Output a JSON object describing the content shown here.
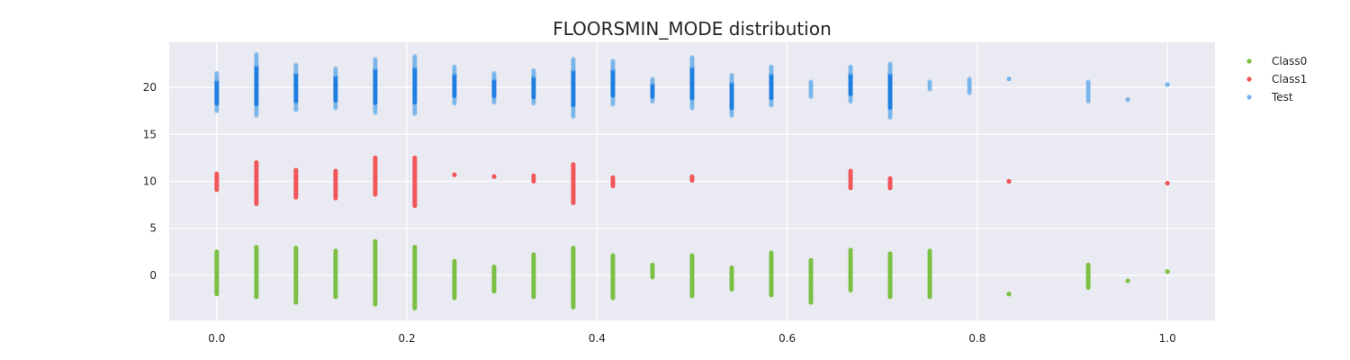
{
  "chart_data": {
    "type": "scatter",
    "title": "FLOORSMIN_MODE distribution",
    "xlabel": "",
    "ylabel": "",
    "xlim": [
      -0.05,
      1.05
    ],
    "ylim": [
      -4.8,
      24.8
    ],
    "xticks": [
      0.0,
      0.2,
      0.4,
      0.6,
      0.8,
      1.0
    ],
    "xtick_labels": [
      "0.0",
      "0.2",
      "0.4",
      "0.6",
      "0.8",
      "1.0"
    ],
    "yticks": [
      0,
      5,
      10,
      15,
      20
    ],
    "ytick_labels": [
      "0",
      "5",
      "10",
      "15",
      "20"
    ],
    "grid": true,
    "legend_position": "upper-right outside",
    "background_color": "#EAEAF2",
    "series": [
      {
        "name": "Class0",
        "color": "#7BC043",
        "offset": 0,
        "columns": [
          {
            "x": 0.0,
            "min": -2.0,
            "max": 2.5
          },
          {
            "x": 0.0417,
            "min": -2.3,
            "max": 3.0
          },
          {
            "x": 0.0833,
            "min": -2.9,
            "max": 2.9
          },
          {
            "x": 0.125,
            "min": -2.3,
            "max": 2.6
          },
          {
            "x": 0.1667,
            "min": -3.1,
            "max": 3.6
          },
          {
            "x": 0.2083,
            "min": -3.5,
            "max": 3.0
          },
          {
            "x": 0.25,
            "min": -2.4,
            "max": 1.5
          },
          {
            "x": 0.2917,
            "min": -1.7,
            "max": 0.9
          },
          {
            "x": 0.3333,
            "min": -2.3,
            "max": 2.2
          },
          {
            "x": 0.375,
            "min": -3.4,
            "max": 2.9
          },
          {
            "x": 0.4167,
            "min": -2.4,
            "max": 2.1
          },
          {
            "x": 0.4583,
            "min": -0.2,
            "max": 1.1
          },
          {
            "x": 0.5,
            "min": -2.2,
            "max": 2.1
          },
          {
            "x": 0.5417,
            "min": -1.5,
            "max": 0.8
          },
          {
            "x": 0.5833,
            "min": -2.1,
            "max": 2.4
          },
          {
            "x": 0.625,
            "min": -2.9,
            "max": 1.6
          },
          {
            "x": 0.6667,
            "min": -1.6,
            "max": 2.7
          },
          {
            "x": 0.7083,
            "min": -2.3,
            "max": 2.3
          },
          {
            "x": 0.75,
            "min": -2.3,
            "max": 2.6
          },
          {
            "x": 0.8333,
            "min": -2.0,
            "max": -2.0
          },
          {
            "x": 0.9167,
            "min": -1.3,
            "max": 1.1
          },
          {
            "x": 0.9583,
            "min": -0.6,
            "max": -0.6
          },
          {
            "x": 1.0,
            "min": 0.4,
            "max": 0.4
          }
        ]
      },
      {
        "name": "Class1",
        "color": "#F0565A",
        "offset": 10,
        "columns": [
          {
            "x": 0.0,
            "min": 9.1,
            "max": 10.8
          },
          {
            "x": 0.0417,
            "min": 7.6,
            "max": 12.0
          },
          {
            "x": 0.0833,
            "min": 8.3,
            "max": 11.2
          },
          {
            "x": 0.125,
            "min": 8.2,
            "max": 11.1
          },
          {
            "x": 0.1667,
            "min": 8.6,
            "max": 12.5
          },
          {
            "x": 0.2083,
            "min": 7.4,
            "max": 12.5
          },
          {
            "x": 0.25,
            "min": 10.7,
            "max": 10.7
          },
          {
            "x": 0.2917,
            "min": 10.5,
            "max": 10.5
          },
          {
            "x": 0.3333,
            "min": 10.0,
            "max": 10.6
          },
          {
            "x": 0.375,
            "min": 7.7,
            "max": 11.8
          },
          {
            "x": 0.4167,
            "min": 9.5,
            "max": 10.4
          },
          {
            "x": 0.5,
            "min": 10.1,
            "max": 10.5
          },
          {
            "x": 0.6667,
            "min": 9.3,
            "max": 11.1
          },
          {
            "x": 0.7083,
            "min": 9.3,
            "max": 10.3
          },
          {
            "x": 0.8333,
            "min": 10.0,
            "max": 10.0
          },
          {
            "x": 1.0,
            "min": 9.8,
            "max": 9.8
          }
        ]
      },
      {
        "name": "Test",
        "color": "#78B4EA",
        "dense_color": "#1E7FE0",
        "offset": 20,
        "columns": [
          {
            "x": 0.0,
            "min": 17.5,
            "max": 21.5
          },
          {
            "x": 0.0417,
            "min": 17.0,
            "max": 23.5
          },
          {
            "x": 0.0833,
            "min": 17.6,
            "max": 22.4
          },
          {
            "x": 0.125,
            "min": 17.8,
            "max": 22.0
          },
          {
            "x": 0.1667,
            "min": 17.3,
            "max": 23.0
          },
          {
            "x": 0.2083,
            "min": 17.2,
            "max": 23.3
          },
          {
            "x": 0.25,
            "min": 18.3,
            "max": 22.2
          },
          {
            "x": 0.2917,
            "min": 18.4,
            "max": 21.5
          },
          {
            "x": 0.3333,
            "min": 18.3,
            "max": 21.8
          },
          {
            "x": 0.375,
            "min": 16.9,
            "max": 23.0
          },
          {
            "x": 0.4167,
            "min": 18.2,
            "max": 22.8
          },
          {
            "x": 0.4583,
            "min": 18.5,
            "max": 20.9
          },
          {
            "x": 0.5,
            "min": 17.8,
            "max": 23.2
          },
          {
            "x": 0.5417,
            "min": 17.0,
            "max": 21.3
          },
          {
            "x": 0.5833,
            "min": 18.1,
            "max": 22.2
          },
          {
            "x": 0.625,
            "min": 19.0,
            "max": 20.6
          },
          {
            "x": 0.6667,
            "min": 18.5,
            "max": 22.2
          },
          {
            "x": 0.7083,
            "min": 16.8,
            "max": 22.5
          },
          {
            "x": 0.75,
            "min": 19.8,
            "max": 20.6
          },
          {
            "x": 0.7917,
            "min": 19.4,
            "max": 20.9
          },
          {
            "x": 0.8333,
            "min": 20.9,
            "max": 20.9
          },
          {
            "x": 0.9167,
            "min": 18.5,
            "max": 20.6
          },
          {
            "x": 0.9583,
            "min": 18.7,
            "max": 18.7
          },
          {
            "x": 1.0,
            "min": 20.3,
            "max": 20.3
          }
        ]
      }
    ]
  }
}
